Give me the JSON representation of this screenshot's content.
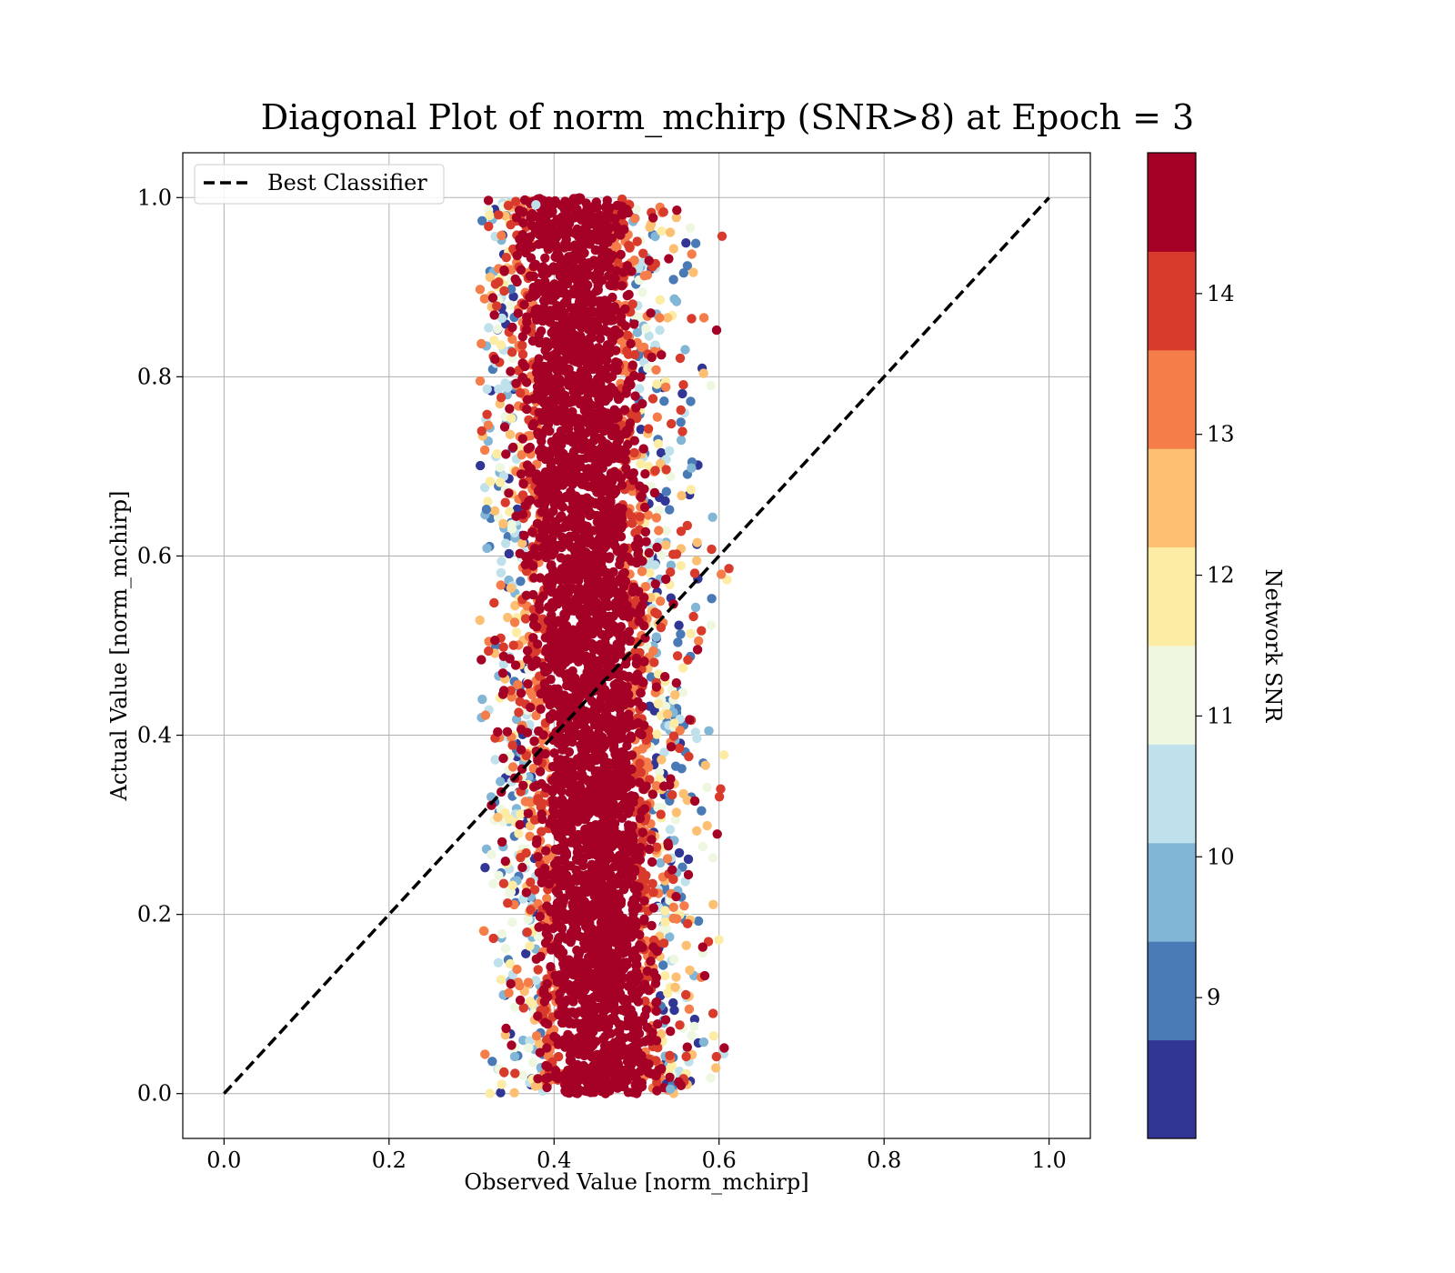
{
  "chart_data": {
    "type": "scatter",
    "title": "Diagonal Plot of norm_mchirp (SNR>8) at Epoch = 3",
    "xlabel": "Observed Value [norm_mchirp]",
    "ylabel": "Actual Value [norm_mchirp]",
    "xlim": [
      -0.05,
      1.05
    ],
    "ylim": [
      -0.05,
      1.05
    ],
    "xticks": [
      0.0,
      0.2,
      0.4,
      0.6,
      0.8,
      1.0
    ],
    "yticks": [
      0.0,
      0.2,
      0.4,
      0.6,
      0.8,
      1.0
    ],
    "xtick_labels": [
      "0.0",
      "0.2",
      "0.4",
      "0.6",
      "0.8",
      "1.0"
    ],
    "ytick_labels": [
      "0.0",
      "0.2",
      "0.4",
      "0.6",
      "0.8",
      "1.0"
    ],
    "grid": true,
    "legend": {
      "placement": "upper-left",
      "entries": [
        "Best Classifier"
      ]
    },
    "reference_line": {
      "name": "Best Classifier",
      "style": "dashed",
      "color": "#000000",
      "x": [
        0.0,
        1.0
      ],
      "y": [
        0.0,
        1.0
      ]
    },
    "colorbar": {
      "label": "Network SNR",
      "range": [
        8.0,
        15.0
      ],
      "ticks": [
        9,
        10,
        11,
        12,
        13,
        14
      ],
      "tick_labels": [
        "9",
        "10",
        "11",
        "12",
        "13",
        "14"
      ],
      "bins": [
        {
          "from": 8.0,
          "to": 8.7,
          "color": "#313695"
        },
        {
          "from": 8.7,
          "to": 9.4,
          "color": "#4a7ab6"
        },
        {
          "from": 9.4,
          "to": 10.1,
          "color": "#82b6d6"
        },
        {
          "from": 10.1,
          "to": 10.8,
          "color": "#bfe1eb"
        },
        {
          "from": 10.8,
          "to": 11.5,
          "color": "#eef7e0"
        },
        {
          "from": 11.5,
          "to": 12.2,
          "color": "#fdeca3"
        },
        {
          "from": 12.2,
          "to": 12.9,
          "color": "#fdbf71"
        },
        {
          "from": 12.9,
          "to": 13.6,
          "color": "#f47d4a"
        },
        {
          "from": 13.6,
          "to": 14.3,
          "color": "#d83a2c"
        },
        {
          "from": 14.3,
          "to": 15.0,
          "color": "#a50026"
        }
      ]
    },
    "point_cloud": {
      "x_center": 0.44,
      "x_range": [
        0.31,
        0.61
      ],
      "y_range": [
        0.0,
        1.0
      ],
      "drift_slope": -0.04,
      "x_spread": 0.055,
      "highest_snr_core": true
    },
    "points": [
      {
        "x": 0.597,
        "y": 0.852,
        "snr": 14.8
      },
      {
        "x": 0.612,
        "y": 0.586,
        "snr": 14.0
      },
      {
        "x": 0.602,
        "y": 0.34,
        "snr": 14.1
      },
      {
        "x": 0.606,
        "y": 0.378,
        "snr": 11.9
      },
      {
        "x": 0.59,
        "y": 0.79,
        "snr": 11.2
      },
      {
        "x": 0.318,
        "y": 0.652,
        "snr": 9.1
      },
      {
        "x": 0.313,
        "y": 0.44,
        "snr": 9.8
      },
      {
        "x": 0.541,
        "y": 0.005,
        "snr": 9.6
      },
      {
        "x": 0.378,
        "y": 0.992,
        "snr": 10.4
      }
    ]
  }
}
